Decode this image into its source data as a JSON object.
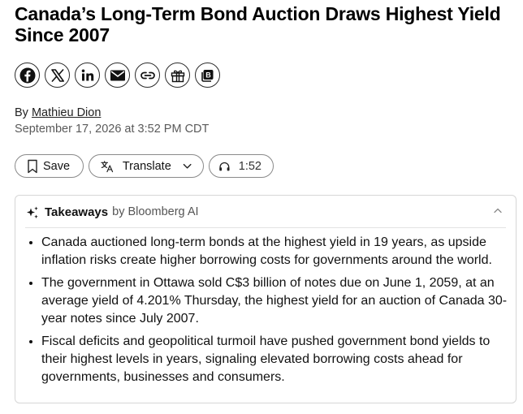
{
  "article": {
    "headline": "Canada’s Long-Term Bond Auction Draws Highest Yield Since 2007",
    "byline_prefix": "By",
    "author": "Mathieu Dion",
    "timestamp": "September 17, 2026 at 3:52 PM CDT"
  },
  "share_icons": [
    "facebook-icon",
    "x-icon",
    "linkedin-icon",
    "email-icon",
    "link-icon",
    "gift-icon",
    "bloomberg-icon"
  ],
  "actions": {
    "save_label": "Save",
    "translate_label": "Translate",
    "listen_duration": "1:52"
  },
  "takeaways": {
    "title": "Takeaways",
    "attribution": "by Bloomberg AI",
    "items": [
      "Canada auctioned long-term bonds at the highest yield in 19 years, as upside inflation risks create higher borrowing costs for governments around the world.",
      "The government in Ottawa sold C$3 billion of notes due on June 1, 2059, at an average yield of 4.201% Thursday, the highest yield for an auction of Canada 30-year notes since July 2007.",
      "Fiscal deficits and geopolitical turmoil have pushed government bond yields to their highest levels in years, signaling elevated borrowing costs ahead for governments, businesses and consumers."
    ]
  }
}
